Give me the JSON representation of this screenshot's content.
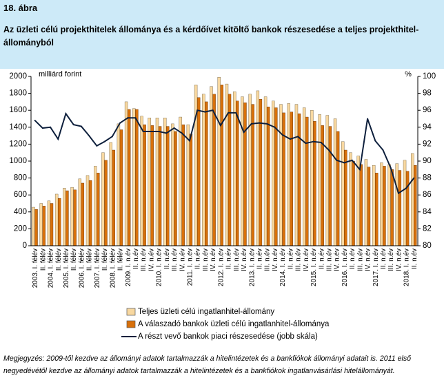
{
  "figure": {
    "number": "18. ábra",
    "title": "Az üzleti célú projekthitelek állománya és a kérdőívet kitöltő bankok részesedése a teljes projekthitel-állományból"
  },
  "note": "Megjegyzés: 2009-től kezdve az állományi adatok tartalmazzák a hitelintézetek és a bankfiókok állományi adatait is. 2011 első negyedévétől kezdve az állományi adatok tartalmazzák a hitelintézetek és a bankfiókok ingatlanvásárlási hitelállományát.",
  "colors": {
    "header_bg": "#cdeaf8",
    "bar_total": "#f8d8a0",
    "bar_respondent": "#d8700a",
    "line_share": "#0d1f3c"
  },
  "chart_data": {
    "type": "bar",
    "left_axis_label": "milliárd forint",
    "right_axis_label": "%",
    "ylim_left": [
      0,
      2000
    ],
    "left_ticks": [
      0,
      200,
      400,
      600,
      800,
      1000,
      1200,
      1400,
      1600,
      1800,
      2000
    ],
    "ylim_right": [
      80,
      100
    ],
    "right_ticks": [
      80,
      82,
      84,
      86,
      88,
      90,
      92,
      94,
      96,
      98,
      100
    ],
    "grid": false,
    "legend_position": "bottom",
    "categories": [
      "2003. I. félév",
      "II. félév",
      "2004. I. félév",
      "II. félév",
      "2005. I. félév",
      "II. félév",
      "2006. I. félév",
      "II. félév",
      "2007. I. félév",
      "II. félév",
      "2008. I. félév",
      "II. félév",
      "2009. I. n.év",
      "II. n.év",
      "III. n.év",
      "IV. n.év",
      "2010. I. n.év",
      "II. n.év",
      "III. n.év",
      "IV. n.év",
      "2011. I. n.év",
      "II. n.év",
      "III. n.év",
      "IV. n.év",
      "2012. I. n.év",
      "II. n.év",
      "III. n.év",
      "IV. n.év",
      "2013. I. n.év",
      "II. n.év",
      "III. n.év",
      "IV. n.év",
      "2014. I. n.év",
      "II. n.év",
      "III. n.év",
      "IV. n.év",
      "2015. I. n.év",
      "II. n.év",
      "III. n.év",
      "IV. n.év",
      "2016. I. n.év",
      "II. n.év",
      "III. n.év",
      "IV. n.év",
      "2017. I. n.év",
      "II. n.év",
      "III. n.év",
      "IV. n.év",
      "2018. I. n.év",
      "II. n.év"
    ],
    "series": [
      {
        "name": "Teljes üzleti célú ingatlanhitel-állomány",
        "axis": "left",
        "type": "bar",
        "values": [
          455,
          500,
          530,
          610,
          680,
          690,
          790,
          830,
          940,
          1100,
          1220,
          1440,
          1700,
          1620,
          1530,
          1510,
          1510,
          1510,
          1440,
          1520,
          1430,
          1900,
          1790,
          1880,
          1990,
          1910,
          1820,
          1760,
          1790,
          1830,
          1760,
          1710,
          1670,
          1680,
          1670,
          1630,
          1600,
          1550,
          1540,
          1500,
          1230,
          1100,
          1060,
          1020,
          950,
          980,
          960,
          970,
          1010,
          1090
        ]
      },
      {
        "name": "A válaszadó bankok üzleti célú ingatlanhitel-állománya",
        "axis": "left",
        "type": "bar",
        "values": [
          430,
          470,
          500,
          560,
          650,
          660,
          740,
          770,
          860,
          1010,
          1130,
          1370,
          1610,
          1610,
          1430,
          1420,
          1410,
          1410,
          1350,
          1430,
          1320,
          1750,
          1700,
          1790,
          1900,
          1790,
          1710,
          1690,
          1670,
          1730,
          1640,
          1630,
          1570,
          1580,
          1560,
          1520,
          1470,
          1420,
          1410,
          1350,
          1130,
          1000,
          960,
          930,
          860,
          940,
          900,
          890,
          880,
          950
        ]
      },
      {
        "name": "A részt vevő bankok piaci részesedése (jobb skála)",
        "axis": "right",
        "type": "line",
        "values": [
          94.8,
          93.9,
          94.0,
          92.6,
          95.6,
          94.3,
          94.1,
          93.0,
          91.8,
          92.3,
          92.9,
          94.5,
          95.1,
          95.1,
          93.5,
          93.5,
          93.5,
          93.3,
          93.9,
          93.3,
          92.4,
          96.0,
          95.8,
          96.0,
          94.2,
          95.7,
          95.7,
          93.4,
          94.4,
          94.5,
          94.4,
          94.0,
          93.1,
          92.6,
          92.9,
          92.1,
          92.3,
          92.2,
          91.3,
          90.1,
          89.8,
          90.1,
          89.0,
          95.0,
          92.4,
          91.3,
          89.2,
          86.2,
          86.8,
          88.0
        ]
      }
    ],
    "legend": [
      "Teljes üzleti célú ingatlanhitel-állomány",
      "A válaszadó bankok üzleti célú ingatlanhitel-állománya",
      "A részt vevő bankok piaci részesedése (jobb skála)"
    ]
  }
}
